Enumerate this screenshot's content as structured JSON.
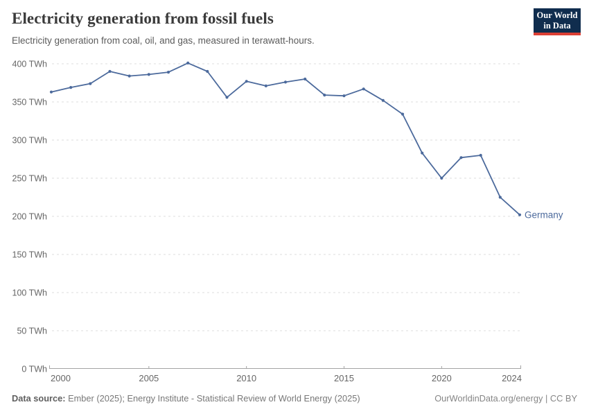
{
  "header": {
    "title": "Electricity generation from fossil fuels",
    "subtitle": "Electricity generation from coal, oil, and gas, measured in terawatt-hours.",
    "logo": {
      "line1": "Our World",
      "line2": "in Data",
      "bg_color": "#102d4e",
      "accent_color": "#dc3f34"
    }
  },
  "chart_data": {
    "type": "line",
    "title": "Electricity generation from fossil fuels",
    "entity": "Germany",
    "unit": "TWh",
    "x": [
      2000,
      2001,
      2002,
      2003,
      2004,
      2005,
      2006,
      2007,
      2008,
      2009,
      2010,
      2011,
      2012,
      2013,
      2014,
      2015,
      2016,
      2017,
      2018,
      2019,
      2020,
      2021,
      2022,
      2023,
      2024
    ],
    "values": [
      363,
      369,
      374,
      390,
      384,
      386,
      389,
      401,
      390,
      356,
      377,
      371,
      376,
      380,
      359,
      358,
      367,
      352,
      334,
      283,
      250,
      277,
      280,
      225,
      202
    ],
    "ylim": [
      0,
      400
    ],
    "yticks": [
      0,
      50,
      100,
      150,
      200,
      250,
      300,
      350,
      400
    ],
    "xticks": [
      2000,
      2005,
      2010,
      2015,
      2020,
      2024
    ],
    "grid": true,
    "legend_position": "end-of-line",
    "colors": {
      "line": "#4C6A9C",
      "entity_label": "#4C6A9C",
      "grid": "#dddddd",
      "axis": "#a3a3a3",
      "tick_label": "#666666"
    }
  },
  "footer": {
    "source_label": "Data source:",
    "source_text": "Ember (2025); Energy Institute - Statistical Review of World Energy (2025)",
    "credit": "OurWorldinData.org/energy | CC BY"
  }
}
